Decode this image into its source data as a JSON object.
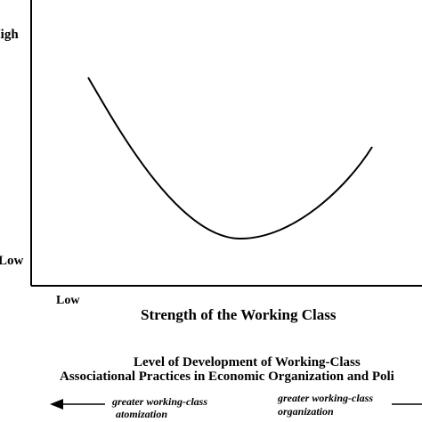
{
  "y_axis": {
    "high_label": "High",
    "low_label": "Low"
  },
  "x_axis": {
    "low_label": "Low",
    "title": "Strength of the Working Class"
  },
  "caption": {
    "line1": "Level of Development of  Working-Class",
    "line2": "Associational Practices in Economic Organization and Poli"
  },
  "arrows": {
    "left_line1": "greater working-class",
    "left_line2": "atomization",
    "right_line1": "greater working-class",
    "right_line2": "organization"
  },
  "curve": {
    "shape": "U-shaped curve",
    "color": "#000000"
  }
}
